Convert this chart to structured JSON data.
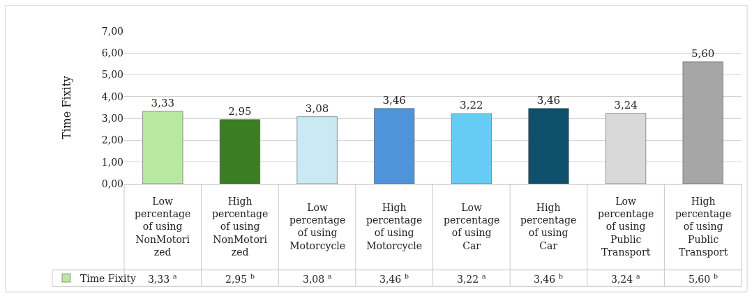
{
  "chart_data": {
    "type": "bar",
    "ylabel": "Time Fixity",
    "categories": [
      "Low percentage of using NonMotorized",
      "High percentage of using NonMotorized",
      "Low percentage of using Motorcycle",
      "High percentage of using Motorcycle",
      "Low percentage of using Car",
      "High percentage of using Car",
      "Low percentage of using Public Transport",
      "High percentage of using Public Transport"
    ],
    "series": [
      {
        "name": "Time Fixity",
        "values": [
          3.33,
          2.95,
          3.08,
          3.46,
          3.22,
          3.46,
          3.24,
          5.6
        ],
        "colors": [
          "#b9e8a3",
          "#3a7d22",
          "#c9e9f5",
          "#4f94d9",
          "#66ccf5",
          "#0e4f6b",
          "#d9d9d9",
          "#a6a6a6"
        ],
        "value_labels": [
          "3,33",
          "2,95",
          "3,08",
          "3,46",
          "3,22",
          "3,46",
          "3,24",
          "5,60"
        ]
      }
    ],
    "annotations": [
      "$^{a}$",
      "$^{b}$",
      "$^{a}$",
      "$^{b}$",
      "$^{a}$",
      "$^{b}$",
      "$^{a}$",
      "$^{b}$"
    ],
    "legend": "bottom left",
    "ylim": [
      0,
      7
    ],
    "yticks": [
      {
        "value": 0,
        "label": "0,00"
      },
      {
        "value": 1,
        "label": "1,00"
      },
      {
        "value": 2,
        "label": "2,00"
      },
      {
        "value": 3,
        "label": "3,00"
      },
      {
        "value": 4,
        "label": "4,00"
      },
      {
        "value": 5,
        "label": "5,00"
      },
      {
        "value": 6,
        "label": "6,00"
      },
      {
        "value": 7,
        "label": "7,00"
      }
    ],
    "grid": "y"
  }
}
